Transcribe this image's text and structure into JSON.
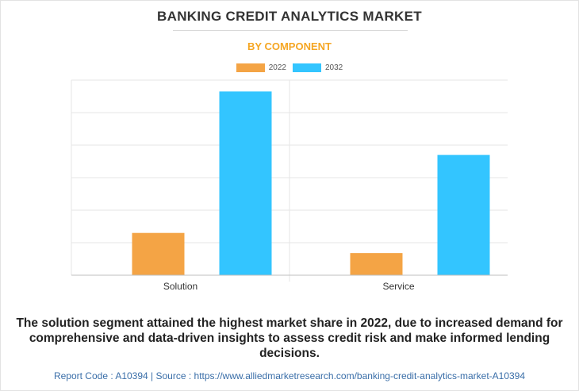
{
  "chart_data": {
    "type": "bar",
    "title": "BANKING CREDIT ANALYTICS MARKET",
    "subtitle": "BY COMPONENT",
    "categories": [
      "Solution",
      "Service"
    ],
    "series": [
      {
        "name": "2022",
        "color": "#f4a445",
        "values": [
          1.3,
          0.68
        ]
      },
      {
        "name": "2032",
        "color": "#33c5ff",
        "values": [
          5.65,
          3.7
        ]
      }
    ],
    "ylim": [
      0,
      6
    ],
    "grid": true,
    "legend_position": "top-center"
  },
  "caption": "The solution segment attained the highest market share in 2022, due to increased demand for comprehensive and data-driven insights to assess credit risk and make informed lending decisions.",
  "footer": "Report Code : A10394  |  Source : https://www.alliedmarketresearch.com/banking-credit-analytics-market-A10394"
}
